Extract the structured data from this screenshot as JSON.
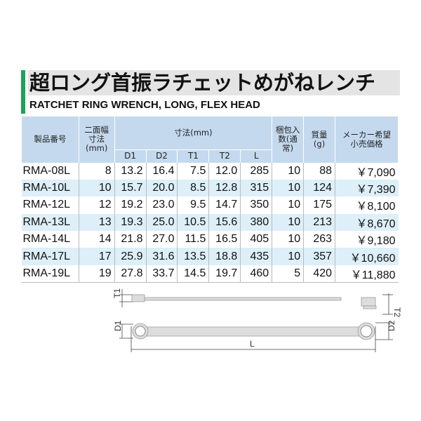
{
  "title": "超ロング首振ラチェットめがねレンチ",
  "subtitle": "RATCHET RING WRENCH, LONG, FLEX HEAD",
  "colors": {
    "accent": "#1aa35a",
    "header_bg": "#c4d9ee",
    "row_alt": "#ddeff8"
  },
  "table": {
    "headers": {
      "model": "製品番号",
      "width": "二面幅寸法(mm)",
      "dims": "寸法(mm)",
      "pack": "梱包入数(通常)",
      "mass": "質量(g)",
      "price": "メーカー希望小売価格"
    },
    "dim_cols": [
      "D1",
      "D2",
      "T1",
      "T2",
      "L"
    ],
    "rows": [
      [
        "RMA-08L",
        "8",
        "13.2",
        "16.4",
        "7.5",
        "12.0",
        "285",
        "10",
        "88",
        "￥7,090"
      ],
      [
        "RMA-10L",
        "10",
        "15.7",
        "20.0",
        "8.5",
        "12.8",
        "315",
        "10",
        "124",
        "￥7,390"
      ],
      [
        "RMA-12L",
        "12",
        "19.2",
        "23.0",
        "9.5",
        "14.7",
        "350",
        "10",
        "175",
        "￥8,100"
      ],
      [
        "RMA-13L",
        "13",
        "19.3",
        "25.0",
        "10.5",
        "15.6",
        "380",
        "10",
        "213",
        "￥8,670"
      ],
      [
        "RMA-14L",
        "14",
        "21.8",
        "27.0",
        "11.5",
        "16.5",
        "405",
        "10",
        "263",
        "￥9,180"
      ],
      [
        "RMA-17L",
        "17",
        "25.9",
        "31.6",
        "13.5",
        "18.8",
        "435",
        "10",
        "357",
        "￥10,660"
      ],
      [
        "RMA-19L",
        "19",
        "27.8",
        "33.7",
        "14.5",
        "19.7",
        "460",
        "5",
        "420",
        "￥11,880"
      ]
    ]
  },
  "diagram": {
    "labels": {
      "t1": "T1",
      "t2": "T2",
      "d1": "D1",
      "d2": "D2",
      "l": "L"
    }
  }
}
